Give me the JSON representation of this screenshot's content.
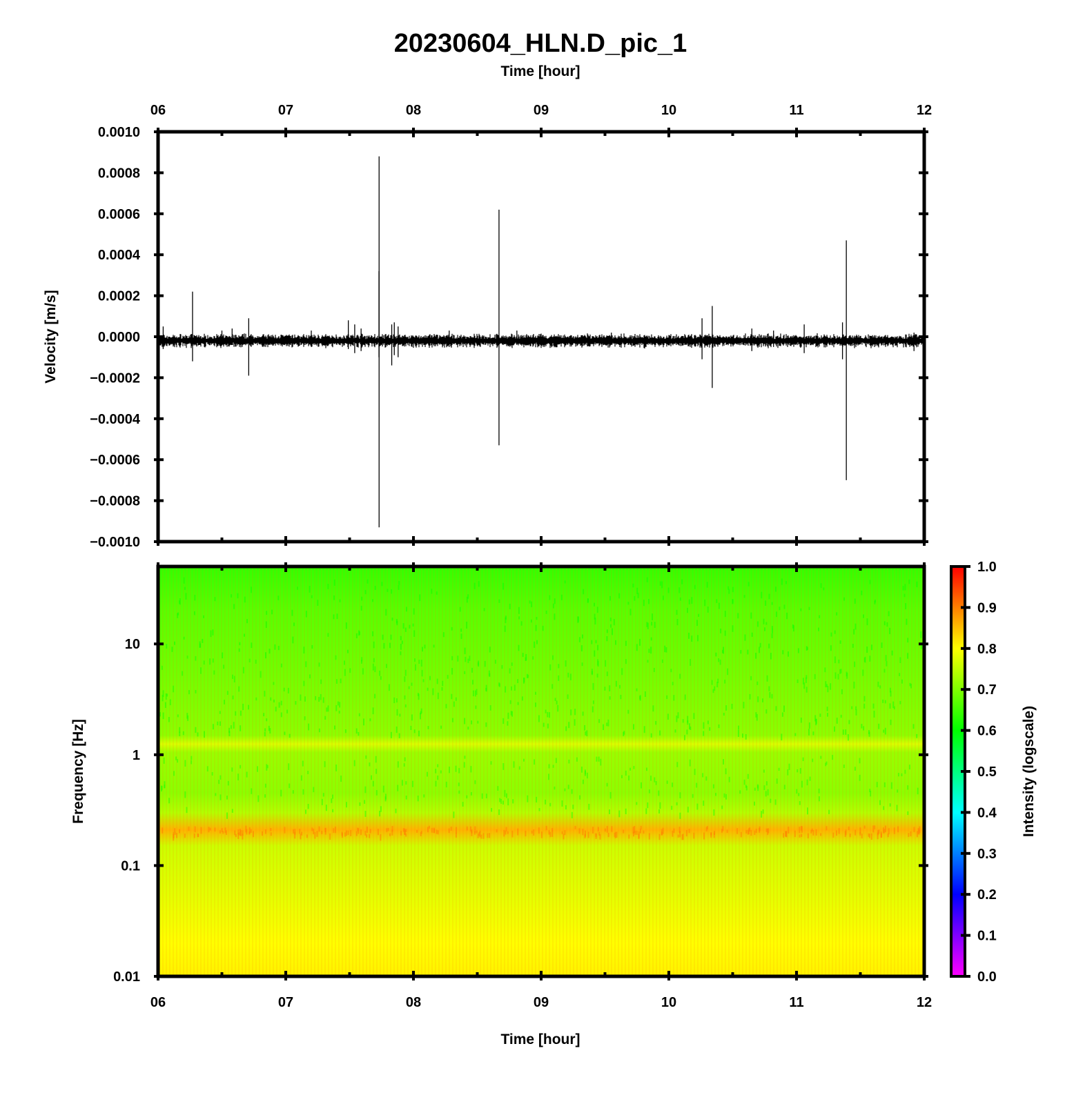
{
  "title": "20230604_HLN.D_pic_1",
  "colors": {
    "frame": "#000000",
    "trace": "#000000",
    "background": "#ffffff"
  },
  "chart_data": [
    {
      "type": "line",
      "panel": "waveform",
      "xlabel": "Time [hour]",
      "ylabel": "Velocity [m/s]",
      "xlim": [
        6,
        12
      ],
      "ylim": [
        -0.001,
        0.001
      ],
      "x_ticks": [
        "06",
        "07",
        "08",
        "09",
        "10",
        "11",
        "12"
      ],
      "y_ticks": [
        "0.0010",
        "0.0008",
        "0.0006",
        "0.0004",
        "0.0002",
        "0.0000",
        "−0.0002",
        "−0.0004",
        "−0.0006",
        "−0.0008",
        "−0.0010"
      ],
      "baseline": -2e-05,
      "background_noise_amplitude": 3e-05,
      "series": [
        {
          "spikes": [
            {
              "t": 6.04,
              "max": 5e-05,
              "min": -6e-05
            },
            {
              "t": 6.27,
              "max": 0.00022,
              "min": -0.00012
            },
            {
              "t": 6.5,
              "max": 3e-05,
              "min": -4e-05
            },
            {
              "t": 6.58,
              "max": 4e-05,
              "min": -4e-05
            },
            {
              "t": 6.71,
              "max": 9e-05,
              "min": -0.00019
            },
            {
              "t": 7.2,
              "max": 3e-05,
              "min": -5e-05
            },
            {
              "t": 7.49,
              "max": 8e-05,
              "min": -6e-05
            },
            {
              "t": 7.54,
              "max": 6e-05,
              "min": -8e-05
            },
            {
              "t": 7.59,
              "max": 4e-05,
              "min": -7e-05
            },
            {
              "t": 7.73,
              "max": 0.00032,
              "min": -0.0001
            },
            {
              "t": 7.731,
              "max": 0.00088,
              "min": -0.00093
            },
            {
              "t": 7.83,
              "max": 6e-05,
              "min": -0.00014
            },
            {
              "t": 7.85,
              "max": 7e-05,
              "min": -9e-05
            },
            {
              "t": 7.88,
              "max": 5e-05,
              "min": -0.0001
            },
            {
              "t": 8.28,
              "max": 3e-05,
              "min": -5e-05
            },
            {
              "t": 8.67,
              "max": 0.00062,
              "min": -0.00053
            },
            {
              "t": 8.81,
              "max": 3e-05,
              "min": -4e-05
            },
            {
              "t": 9.55,
              "max": 2e-05,
              "min": -4e-05
            },
            {
              "t": 10.26,
              "max": 9e-05,
              "min": -0.00011
            },
            {
              "t": 10.34,
              "max": 0.00015,
              "min": -0.00025
            },
            {
              "t": 10.65,
              "max": 4e-05,
              "min": -7e-05
            },
            {
              "t": 10.82,
              "max": 3e-05,
              "min": -5e-05
            },
            {
              "t": 11.06,
              "max": 6e-05,
              "min": -8e-05
            },
            {
              "t": 11.36,
              "max": 7e-05,
              "min": -0.00011
            },
            {
              "t": 11.39,
              "max": 0.00047,
              "min": -0.0007
            },
            {
              "t": 11.92,
              "max": 2e-05,
              "min": -7e-05
            }
          ]
        }
      ]
    },
    {
      "type": "heatmap",
      "panel": "spectrogram",
      "xlabel": "Time [hour]",
      "ylabel": "Frequency [Hz]",
      "xlim": [
        6,
        12
      ],
      "ylim": [
        0.01,
        50
      ],
      "y_scale": "log",
      "x_ticks": [
        "06",
        "07",
        "08",
        "09",
        "10",
        "11",
        "12"
      ],
      "y_ticks": [
        {
          "value": 10,
          "label": "10"
        },
        {
          "value": 1,
          "label": "1"
        },
        {
          "value": 0.1,
          "label": "0.1"
        },
        {
          "value": 0.01,
          "label": "0.01"
        }
      ],
      "colorbar": {
        "label": "Intensity (logscale)",
        "range": [
          0,
          1
        ],
        "ticks": [
          "1.0",
          "0.9",
          "0.8",
          "0.7",
          "0.6",
          "0.5",
          "0.4",
          "0.3",
          "0.2",
          "0.1",
          "0.0"
        ],
        "colormap": [
          "#ff00ff",
          "#0000ff",
          "#00ffff",
          "#00ff00",
          "#ffff00",
          "#ff0000"
        ]
      },
      "intensity_profile": [
        {
          "f": 50,
          "v": 0.64
        },
        {
          "f": 20,
          "v": 0.67
        },
        {
          "f": 5,
          "v": 0.69
        },
        {
          "f": 1.5,
          "v": 0.71
        },
        {
          "f": 1.25,
          "v": 0.77
        },
        {
          "f": 1.05,
          "v": 0.72
        },
        {
          "f": 0.45,
          "v": 0.71
        },
        {
          "f": 0.3,
          "v": 0.74
        },
        {
          "f": 0.21,
          "v": 0.86
        },
        {
          "f": 0.15,
          "v": 0.76
        },
        {
          "f": 0.05,
          "v": 0.78
        },
        {
          "f": 0.02,
          "v": 0.8
        },
        {
          "f": 0.01,
          "v": 0.81
        }
      ]
    }
  ]
}
